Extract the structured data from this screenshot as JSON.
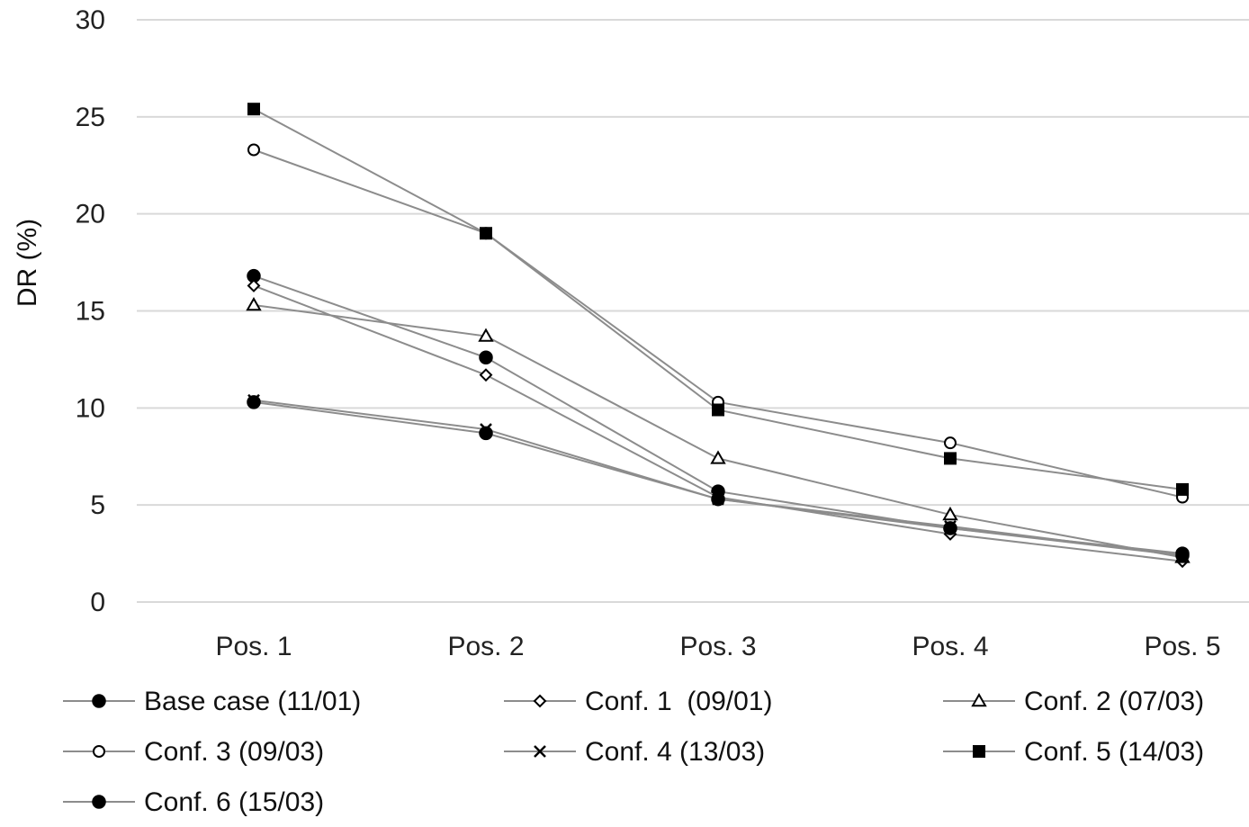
{
  "chart_data": {
    "type": "line",
    "title": "",
    "xlabel": "",
    "ylabel": "DR (%)",
    "categories": [
      "Pos. 1",
      "Pos. 2",
      "Pos. 3",
      "Pos. 4",
      "Pos. 5"
    ],
    "ylim": [
      0,
      30
    ],
    "yticks": [
      0,
      5,
      10,
      15,
      20,
      25,
      30
    ],
    "grid": "horizontal",
    "legend_position": "bottom",
    "line_color": "#8c8c8c",
    "series": [
      {
        "name": "Base case (11/01)",
        "marker": "filled-circle",
        "values": [
          16.8,
          12.6,
          5.7,
          3.8,
          2.5
        ]
      },
      {
        "name": "Conf. 1  (09/01)",
        "marker": "open-diamond",
        "values": [
          16.3,
          11.7,
          5.4,
          3.5,
          2.1
        ]
      },
      {
        "name": "Conf. 2 (07/03)",
        "marker": "open-triangle",
        "values": [
          15.3,
          13.7,
          7.4,
          4.5,
          2.3
        ]
      },
      {
        "name": "Conf. 3 (09/03)",
        "marker": "open-circle",
        "values": [
          23.3,
          19.0,
          10.3,
          8.2,
          5.4
        ]
      },
      {
        "name": "Conf. 4 (13/03)",
        "marker": "x",
        "values": [
          10.4,
          8.9,
          5.3,
          3.9,
          2.4
        ]
      },
      {
        "name": "Conf. 5 (14/03)",
        "marker": "filled-square",
        "values": [
          25.4,
          19.0,
          9.9,
          7.4,
          5.8
        ]
      },
      {
        "name": "Conf. 6 (15/03)",
        "marker": "filled-circle",
        "values": [
          10.3,
          8.7,
          5.3,
          3.8,
          2.4
        ]
      }
    ]
  }
}
